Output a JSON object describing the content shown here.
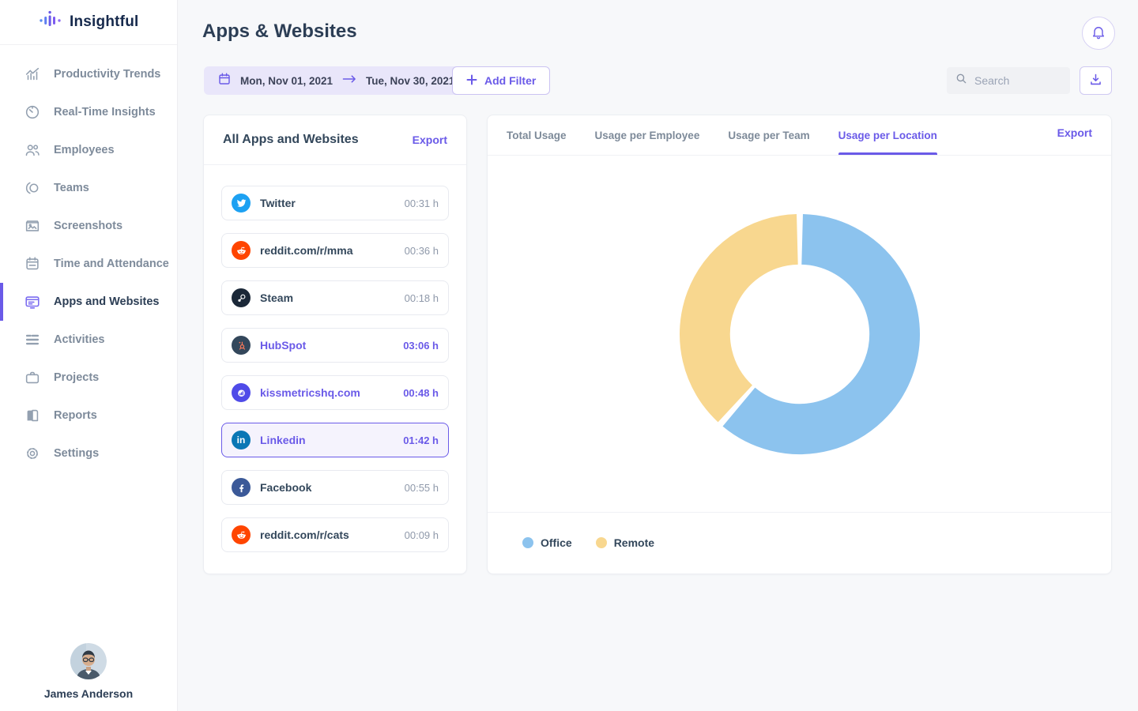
{
  "app": {
    "name": "Insightful"
  },
  "colors": {
    "accent": "#6a5ae8",
    "office_blue": "#8cc3ee",
    "remote_yellow": "#f8d78f"
  },
  "sidebar": {
    "items": [
      {
        "label": "Productivity Trends",
        "icon": "productivity-trends-icon",
        "active": false
      },
      {
        "label": "Real-Time Insights",
        "icon": "real-time-insights-icon",
        "active": false
      },
      {
        "label": "Employees",
        "icon": "employees-icon",
        "active": false
      },
      {
        "label": "Teams",
        "icon": "teams-icon",
        "active": false
      },
      {
        "label": "Screenshots",
        "icon": "screenshots-icon",
        "active": false
      },
      {
        "label": "Time and Attendance",
        "icon": "time-and-attendance-icon",
        "active": false
      },
      {
        "label": "Apps and Websites",
        "icon": "apps-and-websites-icon",
        "active": true
      },
      {
        "label": "Activities",
        "icon": "activities-icon",
        "active": false
      },
      {
        "label": "Projects",
        "icon": "projects-icon",
        "active": false
      },
      {
        "label": "Reports",
        "icon": "reports-icon",
        "active": false
      },
      {
        "label": "Settings",
        "icon": "settings-icon",
        "active": false
      }
    ],
    "user": {
      "name": "James Anderson"
    }
  },
  "header": {
    "title": "Apps & Websites"
  },
  "toolbar": {
    "date_range": {
      "start": "Mon, Nov 01, 2021",
      "end": "Tue, Nov 30, 2021"
    },
    "add_filter_label": "Add Filter",
    "search_placeholder": "Search"
  },
  "apps_panel": {
    "title": "All Apps and Websites",
    "export_label": "Export",
    "items": [
      {
        "name": "Twitter",
        "time": "00:31 h",
        "icon": "twitter-icon",
        "brand_color": "#1da1f2",
        "style": "normal"
      },
      {
        "name": "reddit.com/r/mma",
        "time": "00:36 h",
        "icon": "reddit-icon",
        "brand_color": "#ff4500",
        "style": "normal"
      },
      {
        "name": "Steam",
        "time": "00:18 h",
        "icon": "steam-icon",
        "brand_color": "#1b2838",
        "style": "normal"
      },
      {
        "name": "HubSpot",
        "time": "03:06 h",
        "icon": "hubspot-icon",
        "brand_color": "#33475b",
        "style": "highlighted"
      },
      {
        "name": "kissmetricshq.com",
        "time": "00:48 h",
        "icon": "kissmetrics-icon",
        "brand_color": "#4f4be8",
        "style": "highlighted"
      },
      {
        "name": "Linkedin",
        "time": "01:42 h",
        "icon": "linkedin-icon",
        "brand_color": "#0a77b5",
        "style": "selected"
      },
      {
        "name": "Facebook",
        "time": "00:55 h",
        "icon": "facebook-icon",
        "brand_color": "#3b5998",
        "style": "normal"
      },
      {
        "name": "reddit.com/r/cats",
        "time": "00:09 h",
        "icon": "reddit-icon",
        "brand_color": "#ff4500",
        "style": "normal"
      }
    ]
  },
  "usage_panel": {
    "tabs": [
      {
        "label": "Total Usage",
        "active": false
      },
      {
        "label": "Usage per Employee",
        "active": false
      },
      {
        "label": "Usage per Team",
        "active": false
      },
      {
        "label": "Usage per Location",
        "active": true
      }
    ],
    "export_label": "Export"
  },
  "chart_data": {
    "type": "pie",
    "variant": "donut",
    "title": "Usage per Location",
    "selected_app": "Linkedin",
    "selected_app_total": "01:42 h",
    "segments": [
      {
        "label": "Office",
        "percent": 61.5,
        "color": "#8cc3ee"
      },
      {
        "label": "Remote",
        "percent": 38.5,
        "color": "#f8d78f"
      }
    ],
    "start_angle_deg": 0,
    "gap_degrees": 3,
    "inner_radius_ratio": 0.58,
    "legend_position": "bottom-left"
  }
}
